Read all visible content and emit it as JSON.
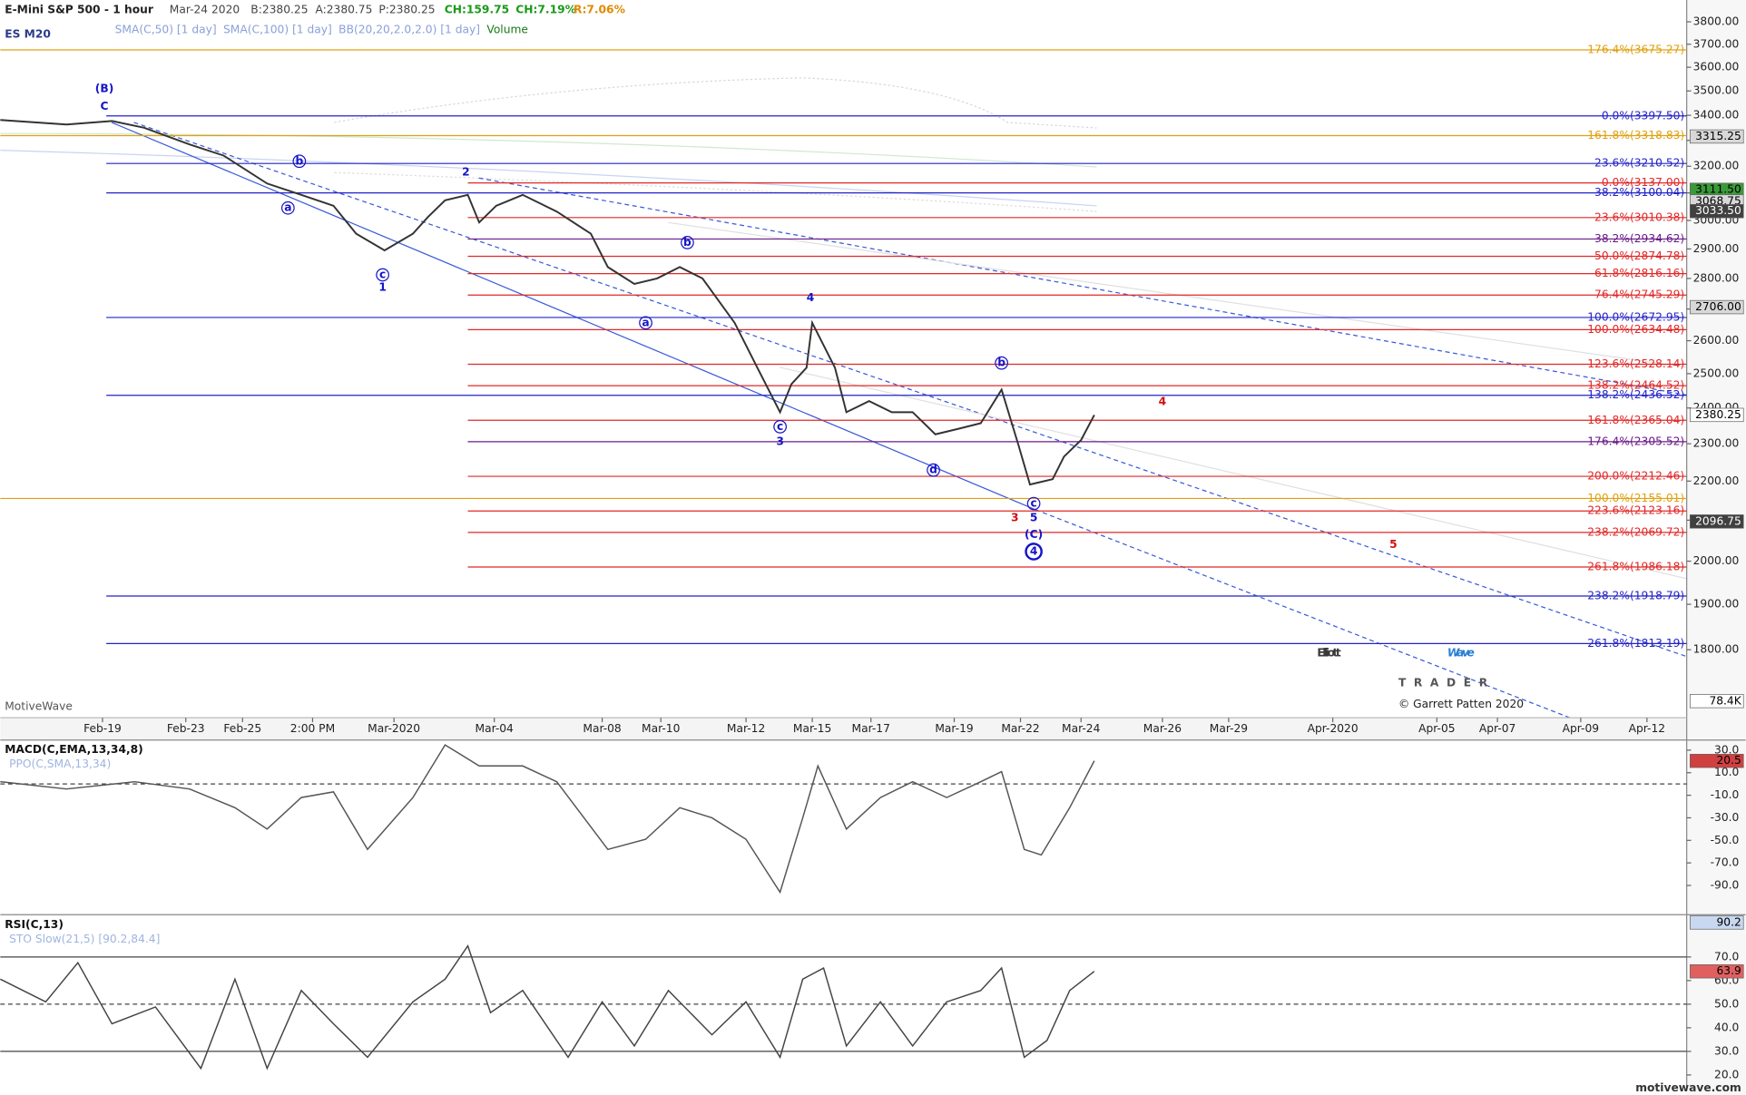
{
  "header": {
    "title": "E-Mini S&P 500 - 1 hour",
    "date": "Mar-24 2020",
    "bid": "B:2380.25",
    "ask": "A:2380.75",
    "price": "P:2380.25",
    "change": "CH:159.75",
    "change_pct": "CH:7.19%",
    "range": "R:7.06%",
    "symbol": "ES M20",
    "indicators": [
      "SMA(C,50) [1 day]",
      "SMA(C,100) [1 day]",
      "BB(20,20,2.0,2.0) [1 day]",
      "Volume"
    ]
  },
  "chart_data": [
    {
      "type": "line",
      "log_scale": true,
      "color": "#333333",
      "x": [
        0,
        35,
        59,
        76,
        100,
        118,
        141,
        159,
        176,
        188,
        203,
        218,
        226,
        235,
        247,
        253,
        262,
        276,
        294,
        312,
        321,
        335,
        347,
        359,
        371,
        388,
        400,
        412,
        418,
        426,
        429,
        441,
        447,
        459,
        471,
        482,
        494,
        506,
        518,
        529,
        538,
        544,
        556,
        562,
        571,
        578
      ],
      "values": [
        3381,
        3363,
        3377,
        3350,
        3284,
        3241,
        3135,
        3093,
        3053,
        2953,
        2895,
        2953,
        3013,
        3073,
        3093,
        2993,
        3053,
        3093,
        3032,
        2953,
        2838,
        2782,
        2800,
        2838,
        2800,
        2656,
        2518,
        2388,
        2469,
        2518,
        2656,
        2518,
        2388,
        2420,
        2388,
        2388,
        2326,
        2341,
        2357,
        2453,
        2295,
        2191,
        2205,
        2265,
        2310,
        2380.25
      ],
      "xlim": [
        0,
        891
      ],
      "xticks": [
        {
          "value": 54,
          "label": "Feb-19"
        },
        {
          "value": 98,
          "label": "Feb-23"
        },
        {
          "value": 128,
          "label": "Feb-25"
        },
        {
          "value": 165,
          "label": "2:00 PM"
        },
        {
          "value": 208,
          "label": "Mar-2020"
        },
        {
          "value": 261,
          "label": "Mar-04"
        },
        {
          "value": 318,
          "label": "Mar-08"
        },
        {
          "value": 349,
          "label": "Mar-10"
        },
        {
          "value": 394,
          "label": "Mar-12"
        },
        {
          "value": 429,
          "label": "Mar-15"
        },
        {
          "value": 460,
          "label": "Mar-17"
        },
        {
          "value": 504,
          "label": "Mar-19"
        },
        {
          "value": 539,
          "label": "Mar-22"
        },
        {
          "value": 571,
          "label": "Mar-24"
        },
        {
          "value": 614,
          "label": "Mar-26"
        },
        {
          "value": 649,
          "label": "Mar-29"
        },
        {
          "value": 704,
          "label": "Apr-2020"
        },
        {
          "value": 759,
          "label": "Apr-05"
        },
        {
          "value": 791,
          "label": "Apr-07"
        },
        {
          "value": 835,
          "label": "Apr-09"
        },
        {
          "value": 870,
          "label": "Apr-12"
        }
      ],
      "ylim": [
        1660,
        3900
      ],
      "yticks": [
        {
          "value": 3800,
          "label": "3800.00"
        },
        {
          "value": 3700,
          "label": "3700.00"
        },
        {
          "value": 3600,
          "label": "3600.00"
        },
        {
          "value": 3500,
          "label": "3500.00"
        },
        {
          "value": 3400,
          "label": "3400.00"
        },
        {
          "value": 3300,
          "label": "3300.00"
        },
        {
          "value": 3200,
          "label": "3200.00"
        },
        {
          "value": 3100,
          "label": "3100.00"
        },
        {
          "value": 3000,
          "label": "3000.00"
        },
        {
          "value": 2900,
          "label": "2900.00"
        },
        {
          "value": 2800,
          "label": "2800.00"
        },
        {
          "value": 2700,
          "label": "2700.00"
        },
        {
          "value": 2600,
          "label": "2600.00"
        },
        {
          "value": 2500,
          "label": "2500.00"
        },
        {
          "value": 2400,
          "label": "2400.00"
        },
        {
          "value": 2300,
          "label": "2300.00"
        },
        {
          "value": 2200,
          "label": "2200.00"
        },
        {
          "value": 2100,
          "label": "2100.00"
        },
        {
          "value": 2000,
          "label": "2000.00"
        },
        {
          "value": 1900,
          "label": "1900.00"
        },
        {
          "value": 1800,
          "label": "1800.00"
        }
      ],
      "levels": [
        {
          "color": "#e0a010",
          "from": 0,
          "lines": [
            {
              "value": 3675.27,
              "label": "176.4%(3675.27)"
            },
            {
              "value": 3318.83,
              "label": "161.8%(3318.83)"
            },
            {
              "value": 2155.01,
              "label": "100.0%(2155.01)"
            }
          ]
        },
        {
          "color": "#2323c8",
          "from": 56,
          "lines": [
            {
              "value": 3397.5,
              "label": "0.0%(3397.50)"
            },
            {
              "value": 3210.52,
              "label": "23.6%(3210.52)"
            },
            {
              "value": 3100.04,
              "label": "38.2%(3100.04)"
            },
            {
              "value": 2672.95,
              "label": "100.0%(2672.95)"
            },
            {
              "value": 2436.52,
              "label": "138.2%(2436.52)"
            },
            {
              "value": 1918.79,
              "label": "238.2%(1918.79)"
            },
            {
              "value": 1813.19,
              "label": "261.8%(1813.19)"
            }
          ]
        },
        {
          "color": "#6a1a8a",
          "from": 247,
          "lines": [
            {
              "value": 2934.62,
              "label": "38.2%(2934.62)"
            },
            {
              "value": 2305.52,
              "label": "176.4%(2305.52)"
            }
          ]
        },
        {
          "color": "#e02828",
          "from": 247,
          "lines": [
            {
              "value": 3137.0,
              "label": "0.0%(3137.00)"
            },
            {
              "value": 3010.38,
              "label": "23.6%(3010.38)"
            },
            {
              "value": 2874.78,
              "label": "50.0%(2874.78)"
            },
            {
              "value": 2816.16,
              "label": "61.8%(2816.16)"
            },
            {
              "value": 2745.29,
              "label": "76.4%(2745.29)"
            },
            {
              "value": 2634.48,
              "label": "100.0%(2634.48)"
            },
            {
              "value": 2528.14,
              "label": "123.6%(2528.14)"
            },
            {
              "value": 2464.52,
              "label": "138.2%(2464.52)"
            },
            {
              "value": 2365.04,
              "label": "161.8%(2365.04)"
            },
            {
              "value": 2212.46,
              "label": "200.0%(2212.46)"
            },
            {
              "value": 2123.16,
              "label": "223.6%(2123.16)"
            },
            {
              "value": 2069.72,
              "label": "238.2%(2069.72)"
            },
            {
              "value": 1986.18,
              "label": "261.8%(1986.18)"
            }
          ]
        }
      ],
      "value_boxes": [
        {
          "value": 3315.25,
          "label": "3315.25",
          "color": "#d8d8d8",
          "text_color": "#000000"
        },
        {
          "value": 3111.5,
          "label": "3111.50",
          "color": "#3a9a3a",
          "text_color": "#000000"
        },
        {
          "value": 3068.75,
          "label": "3068.75",
          "color": "#d8d8d8",
          "text_color": "#000000"
        },
        {
          "value": 3033.5,
          "label": "3033.50",
          "color": "#404040",
          "text_color": "#ffffff"
        },
        {
          "value": 2706.0,
          "label": "2706.00",
          "color": "#d8d8d8",
          "text_color": "#000000"
        },
        {
          "value": 2380.25,
          "label": "2380.25",
          "color": "#ffffff",
          "text_color": "#000000"
        },
        {
          "value": 2096.75,
          "label": "2096.75",
          "color": "#404040",
          "text_color": "#ffffff"
        }
      ],
      "volume_label": "78.4K",
      "annotations": [
        {
          "text": "(B)",
          "x": 55,
          "y": 3509,
          "color": "#1515c8"
        },
        {
          "text": "C",
          "x": 55,
          "y": 3436,
          "color": "#1515c8"
        },
        {
          "text": "b",
          "x": 158,
          "y": 3219,
          "color": "#1515c8",
          "circled": true
        },
        {
          "text": "a",
          "x": 152,
          "y": 3045,
          "color": "#1515c8",
          "circled": true
        },
        {
          "text": "c",
          "x": 202,
          "y": 2812,
          "color": "#1515c8",
          "circled": true
        },
        {
          "text": "1",
          "x": 202,
          "y": 2770,
          "color": "#1515c8"
        },
        {
          "text": "2",
          "x": 246,
          "y": 3177,
          "color": "#1515c8"
        },
        {
          "text": "b",
          "x": 363,
          "y": 2922,
          "color": "#1515c8",
          "circled": true
        },
        {
          "text": "a",
          "x": 341,
          "y": 2656,
          "color": "#1515c8",
          "circled": true
        },
        {
          "text": "4",
          "x": 428,
          "y": 2735,
          "color": "#1515c8"
        },
        {
          "text": "c",
          "x": 412,
          "y": 2347,
          "color": "#1515c8",
          "circled": true
        },
        {
          "text": "3",
          "x": 412,
          "y": 2305,
          "color": "#1515c8"
        },
        {
          "text": "b",
          "x": 529,
          "y": 2532,
          "color": "#1515c8",
          "circled": true
        },
        {
          "text": "d",
          "x": 493,
          "y": 2229,
          "color": "#1515c8",
          "circled": true
        },
        {
          "text": "c",
          "x": 546,
          "y": 2142,
          "color": "#1515c8",
          "circled": true
        },
        {
          "text": "3",
          "x": 536,
          "y": 2105,
          "color": "#d01010"
        },
        {
          "text": "5",
          "x": 546,
          "y": 2105,
          "color": "#1515c8"
        },
        {
          "text": "(C)",
          "x": 546,
          "y": 2064,
          "color": "#1515c8"
        },
        {
          "text": "4",
          "x": 546,
          "y": 2023,
          "color": "#1515c8",
          "circled": true
        },
        {
          "text": "4",
          "x": 614,
          "y": 2417,
          "color": "#d01010"
        },
        {
          "text": "5",
          "x": 736,
          "y": 2039,
          "color": "#d01010"
        }
      ]
    },
    {
      "type": "line",
      "title": "MACD(C,EMA,13,34,8)",
      "subtitle": "PPO(C,SMA,13,34)",
      "x": [
        0,
        35,
        71,
        100,
        124,
        141,
        159,
        176,
        194,
        218,
        235,
        253,
        276,
        294,
        321,
        341,
        359,
        376,
        394,
        412,
        424,
        432,
        447,
        465,
        482,
        500,
        518,
        529,
        541,
        550,
        565,
        578
      ],
      "series": [
        {
          "color": "#555555",
          "values": [
            2.1,
            -4.4,
            2,
            -4.4,
            -21,
            -40,
            -12,
            -7,
            -58,
            -12,
            34.7,
            16,
            16,
            2,
            -58,
            -49,
            -21,
            -30,
            -49,
            -96,
            -30,
            16,
            -40,
            -12,
            2,
            -12,
            2,
            11,
            -58,
            -63,
            -21,
            20.5
          ]
        }
      ],
      "xlim": [
        0,
        891
      ],
      "ylim": [
        -114,
        39
      ],
      "yticks": [
        {
          "value": 30,
          "label": "30.0"
        },
        {
          "value": 10,
          "label": "10.0"
        },
        {
          "value": -10,
          "label": "-10.0"
        },
        {
          "value": -30,
          "label": "-30.0"
        },
        {
          "value": -50,
          "label": "-50.0"
        },
        {
          "value": -70,
          "label": "-70.0"
        },
        {
          "value": -90,
          "label": "-90.0"
        }
      ],
      "hlines": [
        0
      ],
      "value_boxes": [
        {
          "value": 20.5,
          "label": "20.5",
          "color": "#d04040",
          "text_color": "#000000"
        }
      ]
    },
    {
      "type": "line",
      "title": "RSI(C,13)",
      "subtitle": "STO Slow(21,5) [90.2,84.4]",
      "x": [
        0,
        24,
        41,
        59,
        82,
        106,
        124,
        141,
        159,
        176,
        194,
        218,
        235,
        247,
        259,
        276,
        300,
        318,
        335,
        353,
        376,
        394,
        412,
        424,
        435,
        447,
        465,
        482,
        500,
        518,
        529,
        541,
        553,
        565,
        578
      ],
      "series": [
        {
          "color": "#444444",
          "values": [
            60.6,
            51,
            67.6,
            41.7,
            48.8,
            22.8,
            60.6,
            22.8,
            55.8,
            41.7,
            27.5,
            51,
            60.6,
            74.7,
            46.4,
            55.8,
            27.5,
            51,
            32.3,
            55.8,
            37,
            51,
            27.5,
            60.6,
            65.3,
            32.3,
            51,
            32.3,
            51,
            55.8,
            65.3,
            27.5,
            34.6,
            55.8,
            63.9
          ]
        }
      ],
      "xlim": [
        0,
        891
      ],
      "ylim": [
        13.4,
        87.9
      ],
      "yticks": [
        {
          "value": 70,
          "label": "70.0"
        },
        {
          "value": 60,
          "label": "60.0"
        },
        {
          "value": 50,
          "label": "50.0"
        },
        {
          "value": 40,
          "label": "40.0"
        },
        {
          "value": 30,
          "label": "30.0"
        },
        {
          "value": 20,
          "label": "20.0"
        }
      ],
      "hlines": [
        70,
        50,
        30
      ],
      "value_boxes": [
        {
          "value": 90.2,
          "label": "90.2",
          "color": "#c8d8f0",
          "text_color": "#000000"
        },
        {
          "value": 63.9,
          "label": "63.9",
          "color": "#e06060",
          "text_color": "#000000"
        }
      ]
    }
  ],
  "watermark": "MotiveWave",
  "logo": {
    "elliott": "Elliott",
    "wave": "Wave",
    "trader": "TRADER"
  },
  "copyright": "© Garrett Patten 2020",
  "footer": "motivewave.com"
}
